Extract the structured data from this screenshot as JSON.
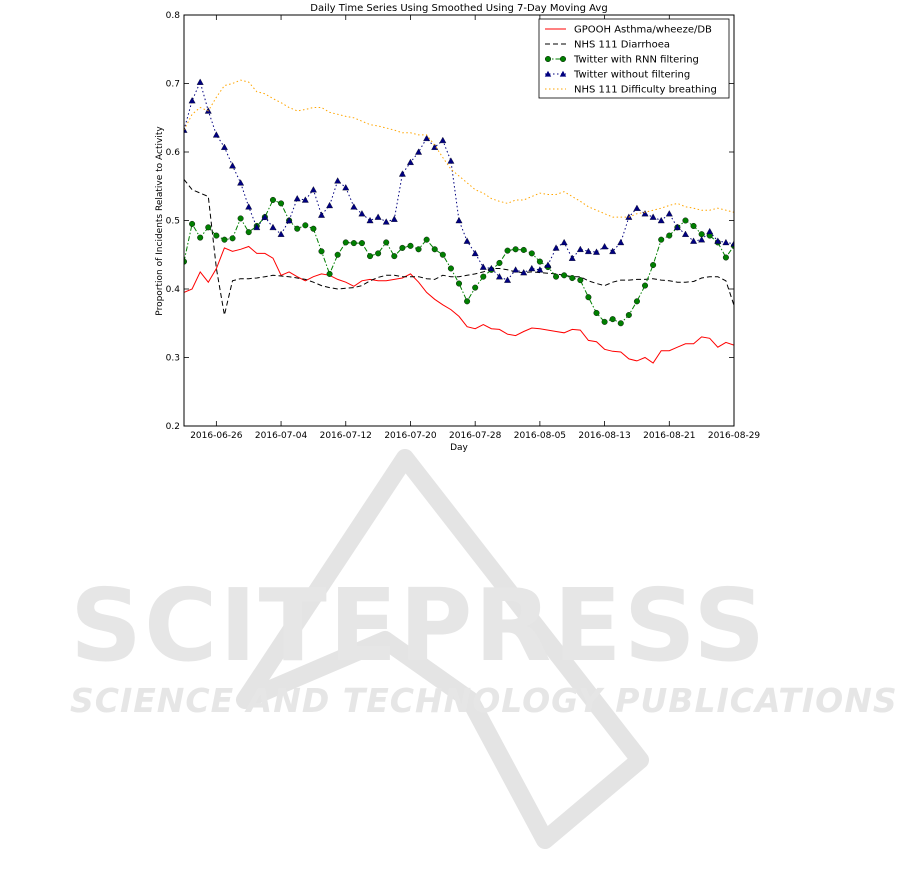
{
  "watermark": {
    "brand": "SCITEPRESS",
    "tagline": "SCIENCE AND TECHNOLOGY PUBLICATIONS"
  },
  "chart_data": {
    "type": "line",
    "title": "Daily Time Series Using Smoothed Using 7-Day Moving Avg",
    "xlabel": "Day",
    "ylabel": "Proportion of Incidents Relative to Activity",
    "xlim": [
      "2016-06-22",
      "2016-08-29"
    ],
    "ylim": [
      0.2,
      0.8
    ],
    "yticks": [
      0.2,
      0.3,
      0.4,
      0.5,
      0.6,
      0.7,
      0.8
    ],
    "ytick_labels": [
      "0.2",
      "0.3",
      "0.4",
      "0.5",
      "0.6",
      "0.7",
      "0.8"
    ],
    "xticks": [
      "2016-06-26",
      "2016-07-04",
      "2016-07-12",
      "2016-07-20",
      "2016-07-28",
      "2016-08-05",
      "2016-08-13",
      "2016-08-21",
      "2016-08-29"
    ],
    "grid": false,
    "legend": "top-right",
    "x_start": "2016-06-22",
    "series": [
      {
        "name": "GPOOH Asthma/wheeze/DB",
        "color": "#ff0000",
        "style": "solid",
        "marker": "none",
        "values": [
          0.395,
          0.4,
          0.425,
          0.41,
          0.43,
          0.46,
          0.455,
          0.458,
          0.462,
          0.452,
          0.452,
          0.445,
          0.42,
          0.425,
          0.418,
          0.412,
          0.418,
          0.422,
          0.42,
          0.414,
          0.41,
          0.404,
          0.412,
          0.414,
          0.412,
          0.412,
          0.414,
          0.416,
          0.422,
          0.41,
          0.395,
          0.385,
          0.377,
          0.37,
          0.36,
          0.345,
          0.342,
          0.348,
          0.342,
          0.341,
          0.334,
          0.332,
          0.338,
          0.343,
          0.342,
          0.34,
          0.338,
          0.336,
          0.341,
          0.34,
          0.325,
          0.323,
          0.312,
          0.309,
          0.308,
          0.298,
          0.295,
          0.3,
          0.292,
          0.31,
          0.31,
          0.315,
          0.32,
          0.32,
          0.33,
          0.328,
          0.315,
          0.322,
          0.318,
          0.315
        ]
      },
      {
        "name": "NHS 111 Diarrhoea",
        "color": "#000000",
        "style": "dashed",
        "marker": "none",
        "values": [
          0.56,
          0.545,
          0.54,
          0.535,
          0.43,
          0.362,
          0.412,
          0.415,
          0.415,
          0.416,
          0.418,
          0.42,
          0.419,
          0.418,
          0.416,
          0.414,
          0.41,
          0.405,
          0.402,
          0.4,
          0.401,
          0.402,
          0.405,
          0.412,
          0.417,
          0.42,
          0.42,
          0.418,
          0.418,
          0.418,
          0.415,
          0.414,
          0.42,
          0.418,
          0.418,
          0.42,
          0.422,
          0.425,
          0.43,
          0.43,
          0.428,
          0.425,
          0.424,
          0.425,
          0.424,
          0.423,
          0.422,
          0.42,
          0.418,
          0.418,
          0.412,
          0.408,
          0.405,
          0.41,
          0.413,
          0.413,
          0.414,
          0.414,
          0.415,
          0.413,
          0.412,
          0.41,
          0.41,
          0.411,
          0.416,
          0.418,
          0.418,
          0.412,
          0.376,
          0.375
        ]
      },
      {
        "name": "Twitter with RNN filtering",
        "color": "#007f00",
        "style": "dashdot",
        "marker": "circle",
        "values": [
          0.44,
          0.495,
          0.475,
          0.49,
          0.478,
          0.472,
          0.474,
          0.503,
          0.483,
          0.492,
          0.505,
          0.53,
          0.525,
          0.5,
          0.488,
          0.493,
          0.488,
          0.455,
          0.422,
          0.45,
          0.468,
          0.467,
          0.467,
          0.448,
          0.452,
          0.468,
          0.448,
          0.46,
          0.463,
          0.458,
          0.472,
          0.458,
          0.45,
          0.43,
          0.408,
          0.382,
          0.402,
          0.418,
          0.428,
          0.438,
          0.456,
          0.458,
          0.457,
          0.452,
          0.44,
          0.432,
          0.418,
          0.42,
          0.416,
          0.413,
          0.388,
          0.365,
          0.352,
          0.356,
          0.35,
          0.362,
          0.382,
          0.405,
          0.435,
          0.472,
          0.478,
          0.49,
          0.5,
          0.492,
          0.48,
          0.478,
          0.468,
          0.446,
          0.463,
          0.47
        ]
      },
      {
        "name": "Twitter without filtering",
        "color": "#00007f",
        "style": "dotted",
        "marker": "triangle",
        "values": [
          0.632,
          0.675,
          0.702,
          0.66,
          0.625,
          0.607,
          0.58,
          0.555,
          0.52,
          0.49,
          0.505,
          0.49,
          0.48,
          0.5,
          0.532,
          0.53,
          0.545,
          0.508,
          0.522,
          0.558,
          0.548,
          0.52,
          0.51,
          0.5,
          0.505,
          0.498,
          0.502,
          0.568,
          0.585,
          0.6,
          0.62,
          0.607,
          0.617,
          0.587,
          0.5,
          0.47,
          0.452,
          0.432,
          0.43,
          0.418,
          0.413,
          0.428,
          0.424,
          0.43,
          0.428,
          0.435,
          0.46,
          0.468,
          0.445,
          0.458,
          0.455,
          0.454,
          0.462,
          0.455,
          0.468,
          0.505,
          0.518,
          0.51,
          0.505,
          0.5,
          0.51,
          0.49,
          0.48,
          0.47,
          0.472,
          0.484,
          0.47,
          0.468,
          0.466,
          0.445
        ]
      },
      {
        "name": "NHS 111 Difficulty breathing",
        "color": "#ffa500",
        "style": "dotted",
        "marker": "none",
        "values": [
          0.632,
          0.655,
          0.665,
          0.66,
          0.68,
          0.697,
          0.7,
          0.705,
          0.702,
          0.688,
          0.685,
          0.678,
          0.672,
          0.665,
          0.66,
          0.662,
          0.665,
          0.665,
          0.658,
          0.655,
          0.652,
          0.65,
          0.645,
          0.64,
          0.638,
          0.635,
          0.632,
          0.628,
          0.628,
          0.625,
          0.625,
          0.61,
          0.592,
          0.575,
          0.565,
          0.555,
          0.545,
          0.54,
          0.532,
          0.528,
          0.525,
          0.53,
          0.53,
          0.535,
          0.54,
          0.538,
          0.538,
          0.542,
          0.535,
          0.528,
          0.52,
          0.515,
          0.51,
          0.505,
          0.505,
          0.505,
          0.51,
          0.512,
          0.515,
          0.518,
          0.522,
          0.525,
          0.52,
          0.518,
          0.515,
          0.515,
          0.518,
          0.515,
          0.512,
          0.508
        ]
      }
    ]
  }
}
